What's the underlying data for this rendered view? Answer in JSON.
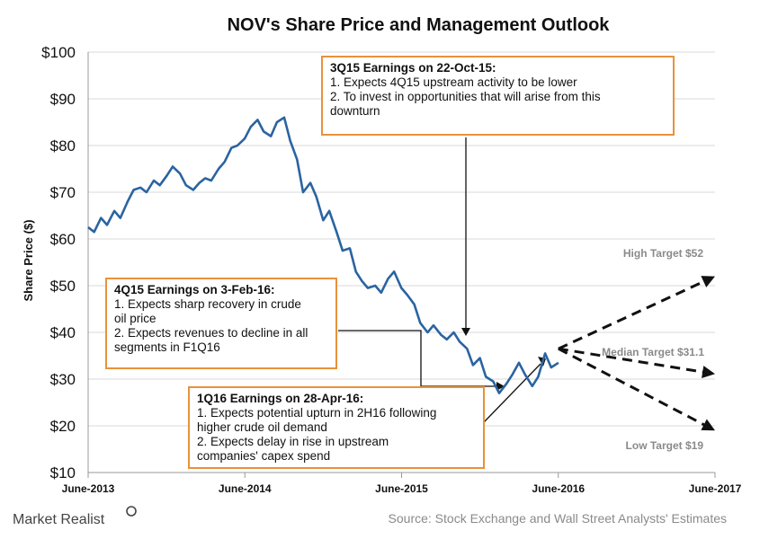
{
  "colors": {
    "price_line": "#2a64a0",
    "target_line": "#111111",
    "box_border": "#e8923a",
    "grid": "#d9d9d9",
    "muted_text": "#8a8a8a"
  },
  "chart_data": {
    "type": "line",
    "title": "NOV's Share  Price and Management  Outlook",
    "ylabel": "Share Price ($)",
    "xlabel": "",
    "ylim": [
      10,
      100
    ],
    "xlim": [
      "2013-06",
      "2017-06"
    ],
    "grid": true,
    "y_ticks": [
      "$10",
      "$20",
      "$30",
      "$40",
      "$50",
      "$60",
      "$70",
      "$80",
      "$90",
      "$100"
    ],
    "y_tick_values": [
      10,
      20,
      30,
      40,
      50,
      60,
      70,
      80,
      90,
      100
    ],
    "x_ticks": [
      "June-2013",
      "June-2014",
      "June-2015",
      "June-2016",
      "June-2017"
    ],
    "series": [
      {
        "points": [
          [
            "2013-06-01",
            62.5
          ],
          [
            "2013-06-15",
            61.5
          ],
          [
            "2013-07-01",
            64.5
          ],
          [
            "2013-07-15",
            63.0
          ],
          [
            "2013-08-01",
            66.0
          ],
          [
            "2013-08-15",
            64.5
          ],
          [
            "2013-09-01",
            68.0
          ],
          [
            "2013-09-15",
            70.5
          ],
          [
            "2013-10-01",
            71.0
          ],
          [
            "2013-10-15",
            70.0
          ],
          [
            "2013-11-01",
            72.5
          ],
          [
            "2013-11-15",
            71.5
          ],
          [
            "2013-12-01",
            73.5
          ],
          [
            "2013-12-15",
            75.5
          ],
          [
            "2014-01-01",
            74.0
          ],
          [
            "2014-01-15",
            71.5
          ],
          [
            "2014-02-01",
            70.5
          ],
          [
            "2014-02-15",
            72.0
          ],
          [
            "2014-03-01",
            73.0
          ],
          [
            "2014-03-15",
            72.5
          ],
          [
            "2014-04-01",
            75.0
          ],
          [
            "2014-04-15",
            76.5
          ],
          [
            "2014-05-01",
            79.5
          ],
          [
            "2014-05-15",
            80.0
          ],
          [
            "2014-06-01",
            81.5
          ],
          [
            "2014-06-15",
            84.0
          ],
          [
            "2014-07-01",
            85.5
          ],
          [
            "2014-07-15",
            83.0
          ],
          [
            "2014-08-01",
            82.0
          ],
          [
            "2014-08-15",
            85.0
          ],
          [
            "2014-09-01",
            86.0
          ],
          [
            "2014-09-15",
            81.0
          ],
          [
            "2014-10-01",
            77.0
          ],
          [
            "2014-10-15",
            70.0
          ],
          [
            "2014-11-01",
            72.0
          ],
          [
            "2014-11-15",
            69.0
          ],
          [
            "2014-12-01",
            64.0
          ],
          [
            "2014-12-15",
            66.0
          ],
          [
            "2015-01-01",
            61.5
          ],
          [
            "2015-01-15",
            57.5
          ],
          [
            "2015-02-01",
            58.0
          ],
          [
            "2015-02-15",
            53.0
          ],
          [
            "2015-03-01",
            51.0
          ],
          [
            "2015-03-15",
            49.5
          ],
          [
            "2015-04-01",
            50.0
          ],
          [
            "2015-04-15",
            48.5
          ],
          [
            "2015-05-01",
            51.5
          ],
          [
            "2015-05-15",
            53.0
          ],
          [
            "2015-06-01",
            49.5
          ],
          [
            "2015-06-15",
            48.0
          ],
          [
            "2015-07-01",
            46.0
          ],
          [
            "2015-07-15",
            42.0
          ],
          [
            "2015-08-01",
            40.0
          ],
          [
            "2015-08-15",
            41.5
          ],
          [
            "2015-09-01",
            39.5
          ],
          [
            "2015-09-15",
            38.5
          ],
          [
            "2015-10-01",
            40.0
          ],
          [
            "2015-10-15",
            38.0
          ],
          [
            "2015-11-01",
            36.5
          ],
          [
            "2015-11-15",
            33.0
          ],
          [
            "2015-12-01",
            34.5
          ],
          [
            "2015-12-15",
            30.5
          ],
          [
            "2016-01-01",
            29.5
          ],
          [
            "2016-01-15",
            27.0
          ],
          [
            "2016-02-01",
            29.0
          ],
          [
            "2016-02-15",
            31.0
          ],
          [
            "2016-03-01",
            33.5
          ],
          [
            "2016-03-15",
            31.0
          ],
          [
            "2016-04-01",
            28.5
          ],
          [
            "2016-04-15",
            30.5
          ],
          [
            "2016-05-01",
            35.5
          ],
          [
            "2016-05-15",
            32.5
          ],
          [
            "2016-06-01",
            33.5
          ]
        ]
      }
    ],
    "targets": [
      {
        "label": "High Target $52",
        "value": 52
      },
      {
        "label": "Median Target $31.1",
        "value": 31.1
      },
      {
        "label": "Low Target $19",
        "value": 19
      }
    ],
    "target_end_date": "2017-06-01",
    "target_start_date": "2016-06-01",
    "target_start_value": 36.5
  },
  "annotations": {
    "q3_2015": {
      "heading": "3Q15 Earnings on 22-Oct-15:",
      "lines": [
        "1. Expects 4Q15 upstream activity to be lower",
        "2. To invest in opportunities that will arise from this",
        "downturn"
      ]
    },
    "q4_2015": {
      "heading": "4Q15 Earnings on 3-Feb-16:",
      "lines": [
        "1. Expects sharp recovery in crude",
        "oil price",
        "2. Expects revenues to decline in all",
        "segments in F1Q16"
      ]
    },
    "q1_2016": {
      "heading": "1Q16 Earnings on 28-Apr-16:",
      "lines": [
        "1. Expects potential upturn in 2H16 following",
        "higher crude oil demand",
        "2. Expects delay in rise in upstream",
        "companies' capex spend"
      ]
    }
  },
  "footer": {
    "source": "Source: Stock Exchange and Wall Street Analysts' Estimates",
    "brand": "Market Realist"
  }
}
